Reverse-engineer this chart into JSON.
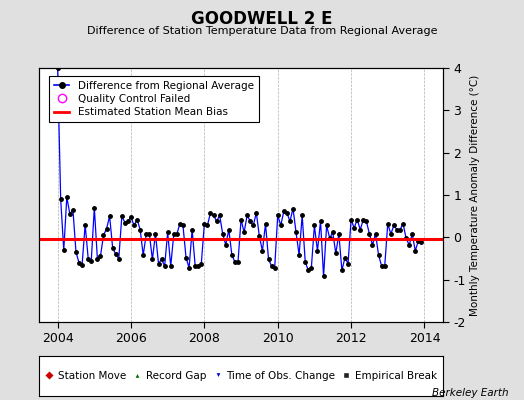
{
  "title": "GOODWELL 2 E",
  "subtitle": "Difference of Station Temperature Data from Regional Average",
  "ylabel": "Monthly Temperature Anomaly Difference (°C)",
  "credit": "Berkeley Earth",
  "ylim": [
    -2,
    4
  ],
  "yticks": [
    -2,
    -1,
    0,
    1,
    2,
    3,
    4
  ],
  "xlim": [
    2003.5,
    2014.5
  ],
  "xticks": [
    2004,
    2006,
    2008,
    2010,
    2012,
    2014
  ],
  "bias_value": -0.05,
  "line_color": "#0000ff",
  "bias_color": "#ff0000",
  "marker_color": "#000000",
  "bg_color": "#e0e0e0",
  "plot_bg": "#ffffff",
  "times": [
    2004.0,
    2004.083,
    2004.167,
    2004.25,
    2004.333,
    2004.417,
    2004.5,
    2004.583,
    2004.667,
    2004.75,
    2004.833,
    2004.917,
    2005.0,
    2005.083,
    2005.167,
    2005.25,
    2005.333,
    2005.417,
    2005.5,
    2005.583,
    2005.667,
    2005.75,
    2005.833,
    2005.917,
    2006.0,
    2006.083,
    2006.167,
    2006.25,
    2006.333,
    2006.417,
    2006.5,
    2006.583,
    2006.667,
    2006.75,
    2006.833,
    2006.917,
    2007.0,
    2007.083,
    2007.167,
    2007.25,
    2007.333,
    2007.417,
    2007.5,
    2007.583,
    2007.667,
    2007.75,
    2007.833,
    2007.917,
    2008.0,
    2008.083,
    2008.167,
    2008.25,
    2008.333,
    2008.417,
    2008.5,
    2008.583,
    2008.667,
    2008.75,
    2008.833,
    2008.917,
    2009.0,
    2009.083,
    2009.167,
    2009.25,
    2009.333,
    2009.417,
    2009.5,
    2009.583,
    2009.667,
    2009.75,
    2009.833,
    2009.917,
    2010.0,
    2010.083,
    2010.167,
    2010.25,
    2010.333,
    2010.417,
    2010.5,
    2010.583,
    2010.667,
    2010.75,
    2010.833,
    2010.917,
    2011.0,
    2011.083,
    2011.167,
    2011.25,
    2011.333,
    2011.417,
    2011.5,
    2011.583,
    2011.667,
    2011.75,
    2011.833,
    2011.917,
    2012.0,
    2012.083,
    2012.167,
    2012.25,
    2012.333,
    2012.417,
    2012.5,
    2012.583,
    2012.667,
    2012.75,
    2012.833,
    2012.917,
    2013.0,
    2013.083,
    2013.167,
    2013.25,
    2013.333,
    2013.417,
    2013.5,
    2013.583,
    2013.667,
    2013.75,
    2013.833,
    2013.917
  ],
  "values": [
    4.0,
    0.9,
    -0.3,
    0.95,
    0.55,
    0.65,
    -0.35,
    -0.6,
    -0.65,
    0.3,
    -0.5,
    -0.55,
    0.7,
    -0.5,
    -0.45,
    0.05,
    0.2,
    0.5,
    -0.25,
    -0.4,
    -0.5,
    0.5,
    0.35,
    0.38,
    0.48,
    0.28,
    0.42,
    0.18,
    -0.42,
    0.08,
    0.08,
    -0.52,
    0.08,
    -0.62,
    -0.52,
    -0.68,
    0.12,
    -0.68,
    0.08,
    0.08,
    0.32,
    0.28,
    -0.48,
    -0.72,
    0.18,
    -0.68,
    -0.68,
    -0.62,
    0.32,
    0.28,
    0.58,
    0.52,
    0.38,
    0.52,
    0.08,
    -0.18,
    0.18,
    -0.42,
    -0.58,
    -0.58,
    0.42,
    0.12,
    0.52,
    0.38,
    0.28,
    0.58,
    0.02,
    -0.32,
    0.32,
    -0.52,
    -0.68,
    -0.72,
    0.52,
    0.28,
    0.62,
    0.58,
    0.38,
    0.68,
    0.12,
    -0.42,
    0.52,
    -0.58,
    -0.78,
    -0.72,
    0.28,
    -0.32,
    0.38,
    -0.92,
    0.28,
    -0.02,
    0.12,
    -0.38,
    0.08,
    -0.78,
    -0.48,
    -0.62,
    0.42,
    0.22,
    0.42,
    0.18,
    0.42,
    0.38,
    0.08,
    -0.18,
    0.08,
    -0.42,
    -0.68,
    -0.68,
    0.32,
    0.08,
    0.28,
    0.18,
    0.18,
    0.32,
    -0.02,
    -0.18,
    0.08,
    -0.32,
    -0.08,
    -0.12
  ]
}
